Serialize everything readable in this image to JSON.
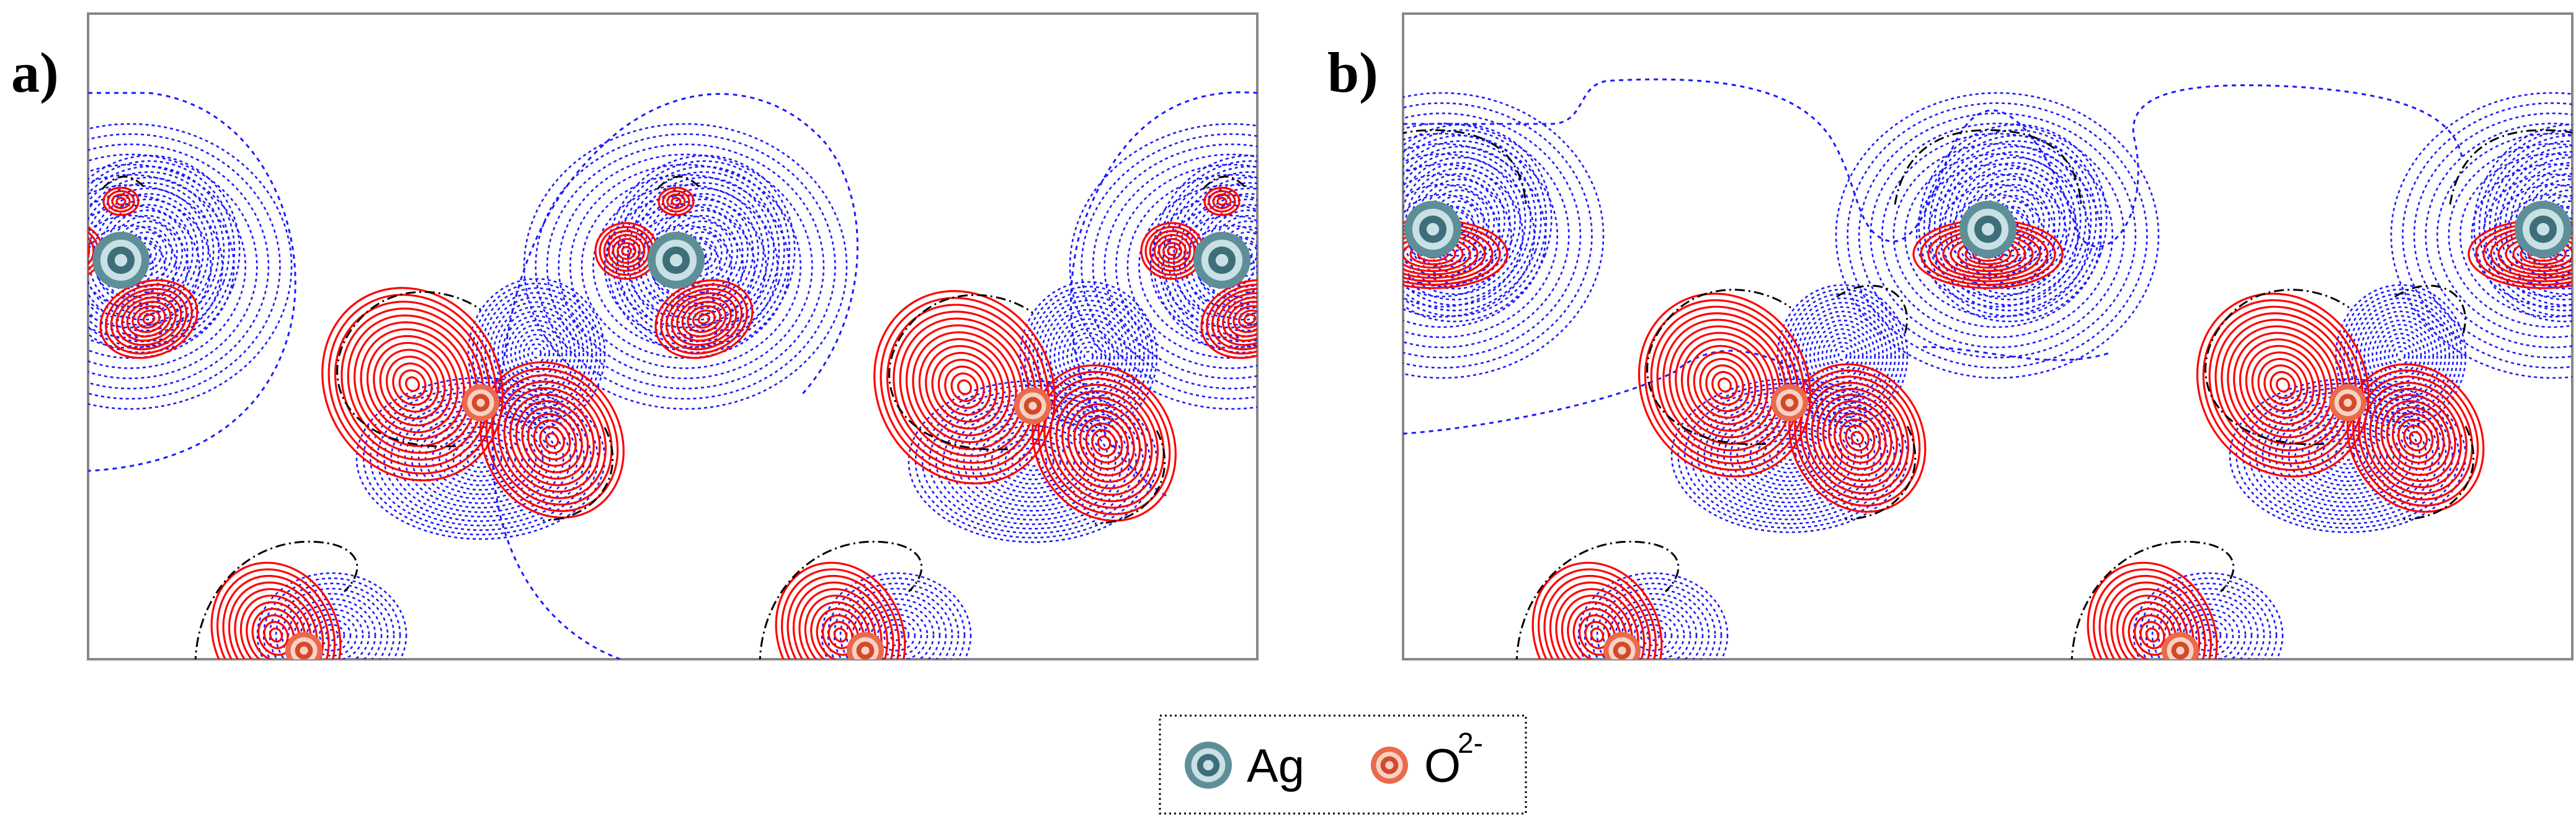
{
  "panels": [
    {
      "label": "a)"
    },
    {
      "label": "b)"
    }
  ],
  "legend": {
    "items": [
      {
        "symbol": "ag-atom-icon",
        "label": "Ag",
        "superscript": "",
        "ring_colors": [
          "#5e8f98",
          "#c9e0e4",
          "#3e6f78"
        ]
      },
      {
        "symbol": "oxygen-ion-icon",
        "label": "O",
        "superscript": "2-",
        "ring_colors": [
          "#ea6a4c",
          "#f8d2c4",
          "#d24a2a"
        ]
      }
    ]
  },
  "colors": {
    "positive_contour": "#ff0000",
    "negative_contour": "#1a1aff",
    "zero_contour": "#000000",
    "frame": "#888888"
  }
}
